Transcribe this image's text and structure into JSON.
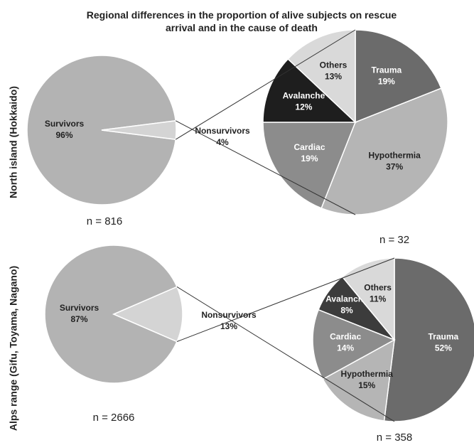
{
  "title": "Regional differences in the proportion of alive subjects on rescue arrival and in the cause of death",
  "row_labels": [
    "North island (Hokkaido)",
    "Alps range (Gifu, Toyama, Nagano)"
  ],
  "chart_data": [
    {
      "type": "pie",
      "categories": [
        "Survivors",
        "Nonsurvivors"
      ],
      "values": [
        96,
        4
      ],
      "value_labels": [
        "96%",
        "4%"
      ],
      "colors": [
        "#b3b3b3",
        "#d4d4d4"
      ],
      "note": "n = 816"
    },
    {
      "type": "pie",
      "categories": [
        "Trauma",
        "Hypothermia",
        "Cardiac",
        "Avalanche",
        "Others"
      ],
      "values": [
        19,
        37,
        19,
        12,
        13
      ],
      "value_labels": [
        "19%",
        "37%",
        "19%",
        "12%",
        "13%"
      ],
      "colors": [
        "#6b6b6b",
        "#b5b5b5",
        "#8c8c8c",
        "#1e1e1e",
        "#d9d9d9"
      ],
      "note": "n = 32"
    },
    {
      "type": "pie",
      "categories": [
        "Survivors",
        "Nonsurvivors"
      ],
      "values": [
        87,
        13
      ],
      "value_labels": [
        "87%",
        "13%"
      ],
      "colors": [
        "#b3b3b3",
        "#d4d4d4"
      ],
      "note": "n = 2666"
    },
    {
      "type": "pie",
      "categories": [
        "Trauma",
        "Hypothermia",
        "Cardiac",
        "Avalanche",
        "Others"
      ],
      "values": [
        52,
        15,
        14,
        8,
        11
      ],
      "value_labels": [
        "52%",
        "15%",
        "14%",
        "8%",
        "11%"
      ],
      "colors": [
        "#6b6b6b",
        "#b5b5b5",
        "#8c8c8c",
        "#3c3c3c",
        "#d9d9d9"
      ],
      "note": "n = 358"
    }
  ]
}
